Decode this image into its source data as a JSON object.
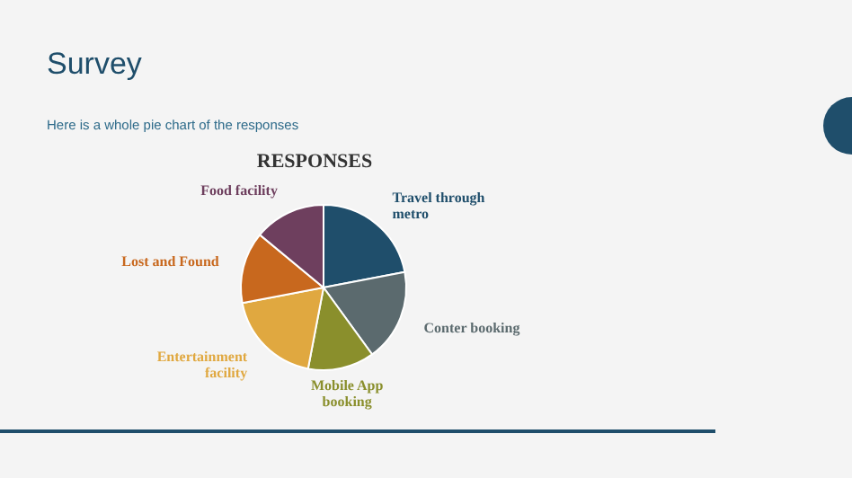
{
  "chart_data": {
    "type": "pie",
    "title": "Survey",
    "subtitle": "Here is a whole pie chart of the responses",
    "annotations": [
      "RESPONSES"
    ],
    "categories": [
      "Travel through metro",
      "Conter booking",
      "Mobile App booking",
      "Entertainment facility",
      "Lost and Found",
      "Food facility"
    ],
    "values": [
      22,
      18,
      13,
      19,
      14,
      14
    ],
    "colors": [
      "#1f4e6b",
      "#5b6a6e",
      "#8a8f2c",
      "#e0a840",
      "#c8681e",
      "#6e3f5e"
    ]
  }
}
